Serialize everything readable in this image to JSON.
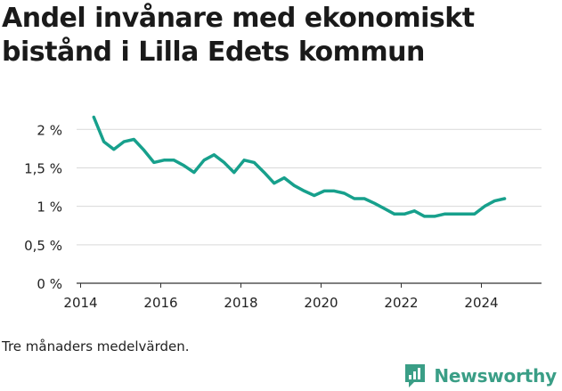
{
  "title": "Andel invånare med ekonomiskt bistånd i Lilla Edets kommun",
  "note": "Tre månaders medelvärden.",
  "brand": {
    "name": "Newsworthy",
    "icon": "newsworthy-logo-icon",
    "color": "#3a9e86"
  },
  "chart_data": {
    "type": "line",
    "title": "Andel invånare med ekonomiskt bistånd i Lilla Edets kommun",
    "xlabel": "",
    "ylabel": "",
    "xlim": [
      2013.9,
      2025.5
    ],
    "ylim": [
      0,
      2.2
    ],
    "grid": true,
    "legend": "none",
    "line_color": "#17a08c",
    "x_ticks": [
      2014,
      2016,
      2018,
      2020,
      2022,
      2024
    ],
    "x_tick_labels": [
      "2014",
      "2016",
      "2018",
      "2020",
      "2022",
      "2024"
    ],
    "y_ticks": [
      0,
      0.5,
      1,
      1.5,
      2
    ],
    "y_tick_labels": [
      "0 %",
      "0,5 %",
      "1 %",
      "1,5 %",
      "2 %"
    ],
    "series": [
      {
        "x": [
          2014.33,
          2014.58,
          2014.83,
          2015.08,
          2015.33,
          2015.58,
          2015.83,
          2016.08,
          2016.33,
          2016.58,
          2016.83,
          2017.08,
          2017.33,
          2017.58,
          2017.83,
          2018.08,
          2018.33,
          2018.58,
          2018.83,
          2019.08,
          2019.33,
          2019.58,
          2019.83,
          2020.08,
          2020.33,
          2020.58,
          2020.83,
          2021.08,
          2021.33,
          2021.58,
          2021.83,
          2022.08,
          2022.33,
          2022.58,
          2022.83,
          2023.08,
          2023.33,
          2023.58,
          2023.83,
          2024.08,
          2024.33,
          2024.58
        ],
        "values": [
          2.16,
          1.84,
          1.74,
          1.84,
          1.87,
          1.73,
          1.57,
          1.6,
          1.6,
          1.53,
          1.44,
          1.6,
          1.67,
          1.57,
          1.44,
          1.6,
          1.57,
          1.44,
          1.3,
          1.37,
          1.27,
          1.2,
          1.14,
          1.2,
          1.2,
          1.17,
          1.1,
          1.1,
          1.04,
          0.97,
          0.9,
          0.9,
          0.94,
          0.87,
          0.87,
          0.9,
          0.9,
          0.9,
          0.9,
          1.0,
          1.07,
          1.1
        ]
      }
    ]
  }
}
